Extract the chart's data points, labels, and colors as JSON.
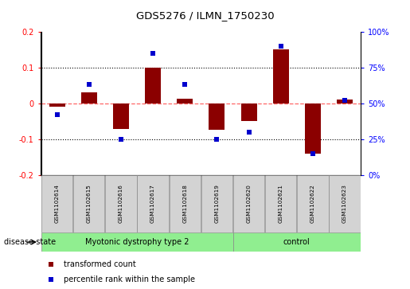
{
  "title": "GDS5276 / ILMN_1750230",
  "samples": [
    "GSM1102614",
    "GSM1102615",
    "GSM1102616",
    "GSM1102617",
    "GSM1102618",
    "GSM1102619",
    "GSM1102620",
    "GSM1102621",
    "GSM1102622",
    "GSM1102623"
  ],
  "red_bars": [
    -0.01,
    0.03,
    -0.072,
    0.1,
    0.012,
    -0.075,
    -0.05,
    0.15,
    -0.14,
    0.01
  ],
  "blue_dots": [
    42,
    63,
    25,
    85,
    63,
    25,
    30,
    90,
    15,
    52
  ],
  "groups": [
    {
      "label": "Myotonic dystrophy type 2",
      "start": 0,
      "end": 6,
      "color": "#90EE90"
    },
    {
      "label": "control",
      "start": 6,
      "end": 10,
      "color": "#90EE90"
    }
  ],
  "ylim_left": [
    -0.2,
    0.2
  ],
  "ylim_right": [
    0,
    100
  ],
  "bar_color": "#8B0000",
  "dot_color": "#0000CD",
  "zero_line_color": "#FF6666",
  "grid_color": "#000000",
  "background_color": "#FFFFFF",
  "plot_bg_color": "#FFFFFF",
  "label_box_color": "#D3D3D3",
  "disease_label": "disease state",
  "legend_red": "transformed count",
  "legend_blue": "percentile rank within the sample"
}
